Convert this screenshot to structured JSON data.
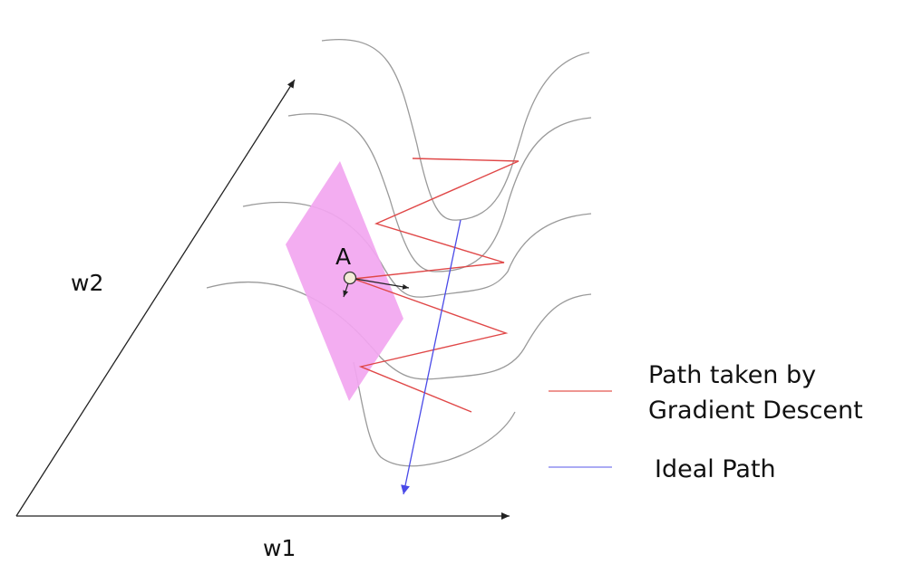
{
  "axes": {
    "x_label": "w1",
    "y_label": "w2"
  },
  "point": {
    "label": "A"
  },
  "legend": {
    "items": [
      {
        "label_lines": [
          "Path taken by",
          "Gradient Descent"
        ],
        "color": "#e8746f"
      },
      {
        "label_lines": [
          "Ideal Path"
        ],
        "color": "#8f8ff0"
      }
    ]
  },
  "colors": {
    "contour": "#9a9a9a",
    "plane_fill": "#f2a6f0",
    "gradient_path": "#e04848",
    "ideal_path": "#4a4ae8",
    "axis": "#222222",
    "point_fill": "#f3ecd8"
  }
}
